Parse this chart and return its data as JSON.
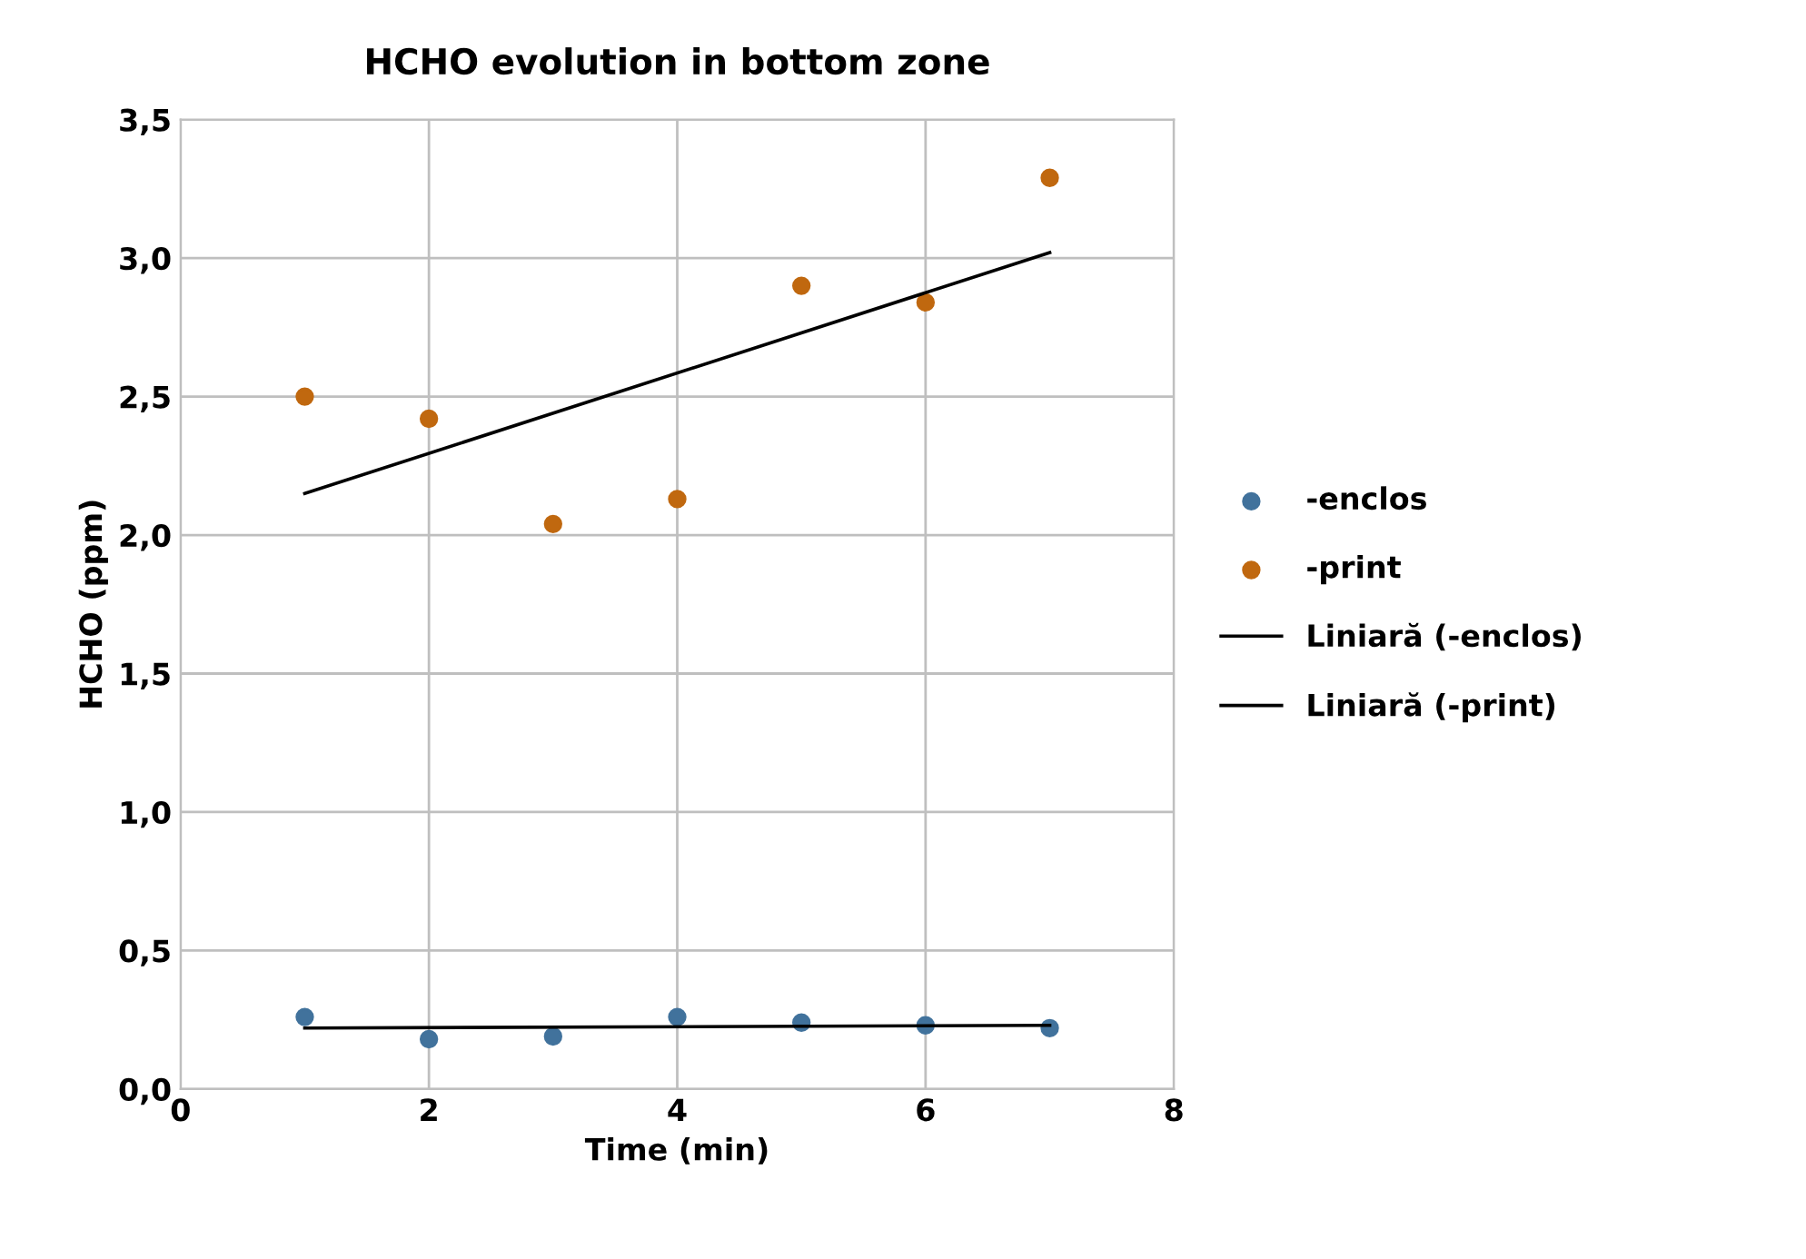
{
  "chart_data": {
    "type": "scatter",
    "title": "HCHO evolution in bottom zone",
    "xlabel": "Time (min)",
    "ylabel": "HCHO (ppm)",
    "xlim": [
      0,
      8
    ],
    "xticks": [
      0,
      2,
      4,
      6,
      8
    ],
    "ylim": [
      0,
      3.5
    ],
    "yticks": [
      {
        "value": 0,
        "label": "0,0"
      },
      {
        "value": 0.5,
        "label": "0,5"
      },
      {
        "value": 1,
        "label": "1,0"
      },
      {
        "value": 1.5,
        "label": "1,5"
      },
      {
        "value": 2,
        "label": "2,0"
      },
      {
        "value": 2.5,
        "label": "2,5"
      },
      {
        "value": 3,
        "label": "3,0"
      },
      {
        "value": 3.5,
        "label": "3,5"
      }
    ],
    "grid": true,
    "legend": "right",
    "series": [
      {
        "name": "-enclos",
        "marker": "circle",
        "color": "#41729c",
        "x": [
          1,
          2,
          3,
          4,
          5,
          6,
          7
        ],
        "values": [
          0.26,
          0.18,
          0.19,
          0.26,
          0.24,
          0.23,
          0.22
        ]
      },
      {
        "name": "-print",
        "marker": "circle",
        "color": "#c0680f",
        "x": [
          1,
          2,
          3,
          4,
          5,
          6,
          7
        ],
        "values": [
          2.5,
          2.42,
          2.04,
          2.13,
          2.9,
          2.84,
          3.29
        ]
      },
      {
        "name": "Liniară (-enclos)",
        "type": "line",
        "marker": "none",
        "line_style": "solid",
        "color": "#000000",
        "x": [
          1,
          7
        ],
        "values": [
          0.22,
          0.23
        ]
      },
      {
        "name": "Liniară (-print)",
        "type": "line",
        "marker": "none",
        "line_style": "solid",
        "color": "#000000",
        "x": [
          1,
          7
        ],
        "values": [
          2.15,
          3.02
        ]
      }
    ]
  }
}
